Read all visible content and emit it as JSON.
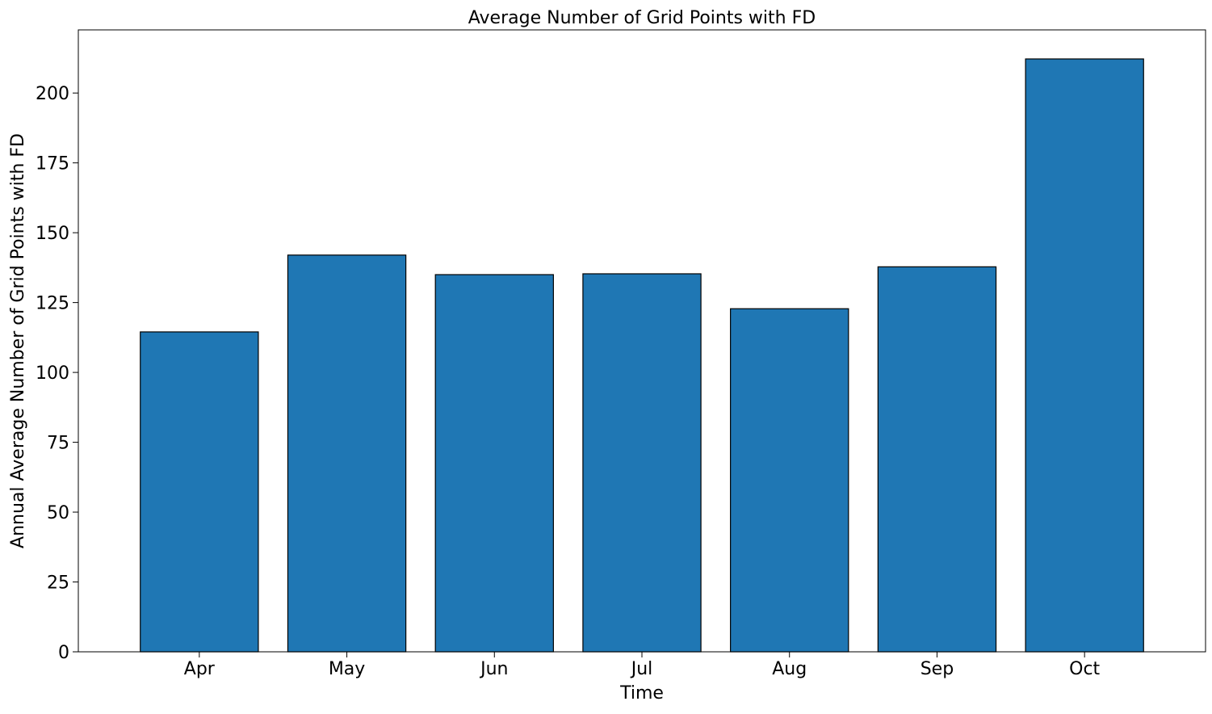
{
  "chart_data": {
    "type": "bar",
    "title": "Average Number of Grid Points with FD",
    "xlabel": "Time",
    "ylabel": "Annual Average Number of Grid Points with FD",
    "categories": [
      "Apr",
      "May",
      "Jun",
      "Jul",
      "Aug",
      "Sep",
      "Oct"
    ],
    "values": [
      114.5,
      142.0,
      135.0,
      135.3,
      122.8,
      137.8,
      212.2
    ],
    "ylim": [
      0,
      222.6
    ],
    "yticks": [
      0,
      25,
      50,
      75,
      100,
      125,
      150,
      175,
      200
    ],
    "ytick_labels": [
      "0",
      "25",
      "50",
      "75",
      "100",
      "125",
      "150",
      "175",
      "200"
    ],
    "grid": false,
    "colors": {
      "bar_fill": "#1f77b4",
      "bar_edge": "#000000",
      "axis": "#000000"
    }
  }
}
